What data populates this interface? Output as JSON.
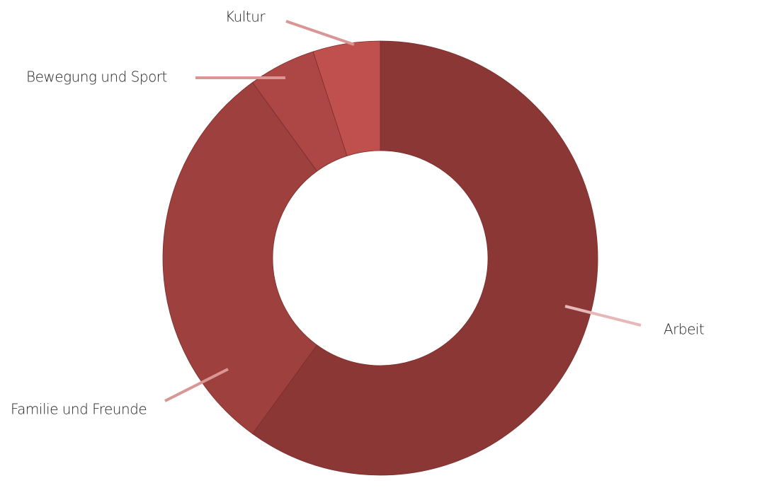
{
  "chart_data": {
    "type": "donut",
    "categories": [
      "Arbeit",
      "Familie und Freunde",
      "Bewegung und Sport",
      "Kultur"
    ],
    "values": [
      60,
      30,
      5,
      5
    ],
    "colors": [
      "#8b3735",
      "#9e403e",
      "#ad4745",
      "#c0504d"
    ]
  }
}
